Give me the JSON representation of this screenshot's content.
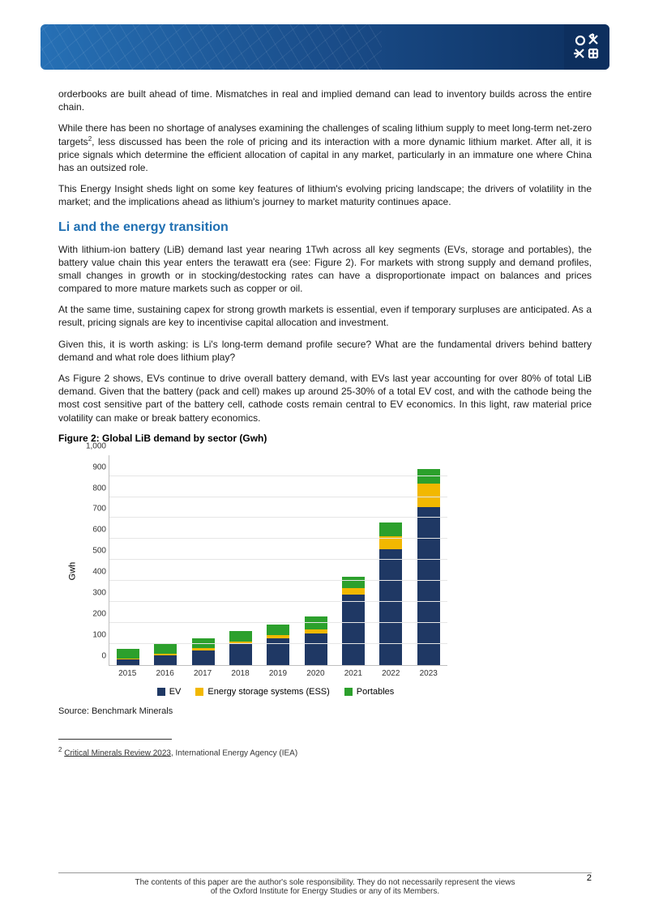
{
  "paragraphs": {
    "p1": "orderbooks are built ahead of time. Mismatches in real and implied demand can lead to inventory builds across the entire chain.",
    "p2a": "While there has been no shortage of analyses examining the challenges of scaling lithium supply to meet long-term net-zero targets",
    "p2b": ", less discussed has been the role of pricing and its interaction with a more dynamic lithium market. After all, it is price signals which determine the efficient allocation of capital in any market, particularly in an immature one where China has an outsized role.",
    "p3": "This Energy Insight sheds light on some key features of lithium's evolving pricing landscape; the drivers of volatility in the market; and the implications ahead as lithium's journey to market maturity continues apace.",
    "p4": "With lithium-ion battery (LiB) demand last year nearing 1Twh across all key segments (EVs, storage and portables), the battery value chain this year enters the terawatt era (see: Figure 2). For markets with strong supply and demand profiles, small changes in growth or in stocking/destocking rates can have a disproportionate impact on balances and prices compared to more mature markets such as copper or oil.",
    "p5": "At the same time, sustaining capex for strong growth markets is essential, even if temporary surpluses are anticipated. As a result, pricing signals are key to incentivise capital allocation and investment.",
    "p6": "Given this, it is worth asking: is Li's long-term demand profile secure? What are the fundamental drivers behind battery demand and what role does lithium play?",
    "p7": "As Figure 2 shows, EVs continue to drive overall battery demand, with EVs last year accounting for over 80% of total LiB demand. Given that the battery (pack and cell) makes up around 25-30% of a total EV cost, and with the cathode being the most cost sensitive part of the battery cell, cathode costs remain central to EV economics. In this light, raw material price volatility can make or break battery economics."
  },
  "heading": "Li and the energy transition",
  "figure": {
    "title": "Figure 2: Global LiB demand by sector (Gwh)",
    "ylabel": "Gwh",
    "ymax": 1000,
    "yticks": [
      0,
      100,
      200,
      300,
      400,
      500,
      600,
      700,
      800,
      900,
      1000
    ],
    "ytop_label": "1,000",
    "categories": [
      "2015",
      "2016",
      "2017",
      "2018",
      "2019",
      "2020",
      "2021",
      "2022",
      "2023"
    ],
    "series": {
      "ev": {
        "label": "EV",
        "color": "#1f3864"
      },
      "ess": {
        "label": "Energy storage systems (ESS)",
        "color": "#f2b800"
      },
      "portables": {
        "label": "Portables",
        "color": "#2ca02c"
      }
    },
    "data": {
      "ev": [
        25,
        45,
        70,
        100,
        125,
        150,
        335,
        550,
        750
      ],
      "ess": [
        5,
        8,
        10,
        12,
        15,
        20,
        30,
        60,
        110
      ],
      "portables": [
        45,
        47,
        45,
        48,
        50,
        60,
        55,
        65,
        70
      ]
    },
    "source": "Source: Benchmark Minerals"
  },
  "footnote": {
    "num": "2",
    "link": "Critical Minerals Review 2023",
    "tail": ", International Energy Agency (IEA)"
  },
  "footer": {
    "line1": "The contents of this paper are the author's sole responsibility. They do not necessarily represent the views",
    "line2": "of the Oxford Institute for Energy Studies or any of its Members.",
    "page": "2"
  }
}
